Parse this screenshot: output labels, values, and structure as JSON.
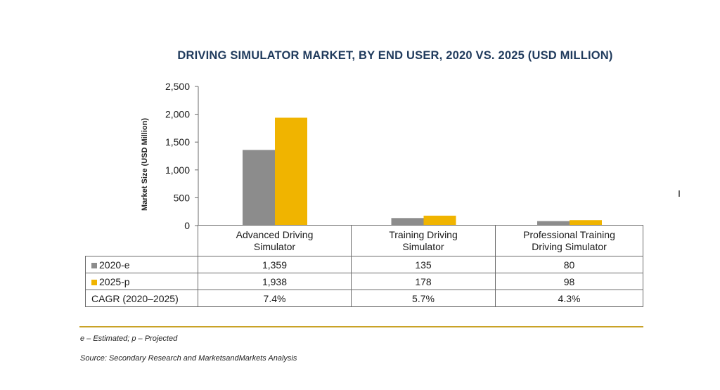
{
  "chart_data": {
    "type": "bar",
    "title": "DRIVING SIMULATOR MARKET, BY END USER, 2020 VS. 2025 (USD MILLION)",
    "ylabel": "Market Size (USD Million)",
    "xlabel": "",
    "ylim": [
      0,
      2500
    ],
    "yticks": [
      0,
      500,
      1000,
      1500,
      2000,
      2500
    ],
    "ytick_labels": [
      "0",
      "500",
      "1,000",
      "1,500",
      "2,000",
      "2,500"
    ],
    "categories": [
      [
        "Advanced Driving",
        "Simulator"
      ],
      [
        "Training Driving",
        "Simulator"
      ],
      [
        "Professional Training",
        "Driving Simulator"
      ]
    ],
    "series": [
      {
        "name": "2020-e",
        "color": "#8c8c8c",
        "values": [
          1359,
          135,
          80
        ],
        "value_labels": [
          "1,359",
          "135",
          "80"
        ]
      },
      {
        "name": "2025-p",
        "color": "#f0b400",
        "values": [
          1938,
          178,
          98
        ],
        "value_labels": [
          "1,938",
          "178",
          "98"
        ]
      }
    ],
    "cagr": {
      "label": "CAGR (2020–2025)",
      "values": [
        "7.4%",
        "5.7%",
        "4.3%"
      ]
    },
    "grid": false,
    "legend": "table-left"
  },
  "footnote": "e – Estimated; p – Projected",
  "source": "Source: Secondary Research and MarketsandMarkets Analysis"
}
